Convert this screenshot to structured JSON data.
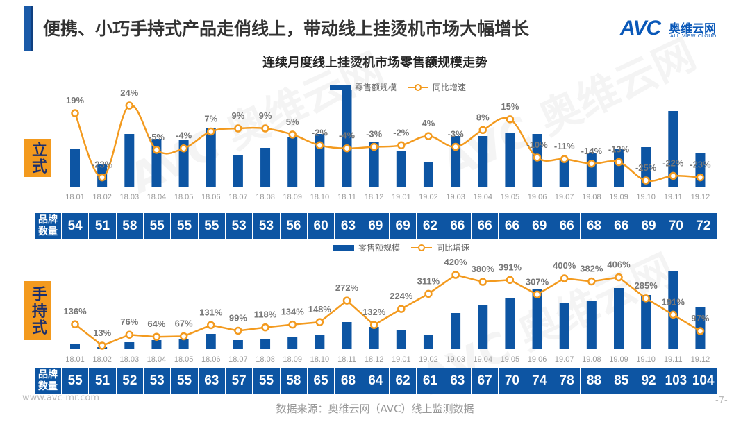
{
  "header": {
    "title": "便携、小巧手持式产品走俏线上，带动线上挂烫机市场大幅增长",
    "logo_text": "AVC",
    "logo_cn": "奥维云网",
    "logo_en": "ALL VIEW CLOUD"
  },
  "chart_title": "连续月度线上挂烫机市场零售额规模走势",
  "watermark": "AVC 奥维云网 ALL VIEW CLOUD",
  "brand_label": "品牌数量",
  "colors": {
    "bar": "#0d55a3",
    "line": "#f39a1e",
    "tag": "#f39a1e"
  },
  "chart_data": [
    {
      "type": "bar+line",
      "segment": "立式",
      "legend": [
        "零售额规模",
        "同比增速"
      ],
      "legend_placement": "top-center",
      "categories": [
        "18.01",
        "18.02",
        "18.03",
        "18.04",
        "18.05",
        "18.06",
        "18.07",
        "18.08",
        "18.09",
        "18.10",
        "18.11",
        "18.12",
        "19.01",
        "19.02",
        "19.03",
        "19.04",
        "19.05",
        "19.06",
        "19.07",
        "19.08",
        "19.09",
        "19.10",
        "19.11",
        "19.12"
      ],
      "series": [
        {
          "name": "零售额规模",
          "type": "bar",
          "unit": "relative",
          "values": [
            55,
            33,
            77,
            70,
            68,
            86,
            47,
            57,
            73,
            77,
            141,
            65,
            53,
            36,
            74,
            74,
            79,
            77,
            40,
            49,
            56,
            58,
            110,
            50
          ]
        },
        {
          "name": "同比增速",
          "type": "line",
          "unit": "%",
          "values": [
            19,
            -23,
            24,
            -5,
            -4,
            7,
            9,
            9,
            5,
            -2,
            -4,
            -3,
            -2,
            4,
            -3,
            8,
            15,
            -10,
            -11,
            -14,
            -13,
            -25,
            -22,
            -23
          ],
          "labels": [
            "19%",
            "-23%",
            "24%",
            "-5%",
            "-4%",
            "7%",
            "9%",
            "9%",
            "5%",
            "-2%",
            "-4%",
            "-3%",
            "-2%",
            "4%",
            "-3%",
            "8%",
            "15%",
            "-10%",
            "-11%",
            "-14%",
            "-13%",
            "-25%",
            "-22%",
            "-23%"
          ]
        }
      ],
      "brand_count": [
        54,
        51,
        58,
        55,
        55,
        55,
        53,
        53,
        56,
        60,
        63,
        69,
        69,
        62,
        66,
        66,
        66,
        69,
        66,
        68,
        66,
        69,
        70,
        72
      ]
    },
    {
      "type": "bar+line",
      "segment": "手持式",
      "legend": [
        "零售额规模",
        "同比增速"
      ],
      "legend_placement": "top-center",
      "categories": [
        "18.01",
        "18.02",
        "18.03",
        "18.04",
        "18.05",
        "18.06",
        "18.07",
        "18.08",
        "18.09",
        "18.10",
        "18.11",
        "18.12",
        "19.01",
        "19.02",
        "19.03",
        "19.04",
        "19.05",
        "19.06",
        "19.07",
        "19.08",
        "19.09",
        "19.10",
        "19.11",
        "19.12"
      ],
      "series": [
        {
          "name": "零售额规模",
          "type": "bar",
          "unit": "relative",
          "values": [
            8,
            3,
            10,
            13,
            15,
            22,
            13,
            14,
            18,
            21,
            39,
            32,
            27,
            21,
            52,
            63,
            73,
            87,
            66,
            69,
            88,
            78,
            113,
            61
          ]
        },
        {
          "name": "同比增速",
          "type": "line",
          "unit": "%",
          "values": [
            136,
            13,
            76,
            64,
            67,
            131,
            99,
            118,
            134,
            148,
            272,
            132,
            224,
            311,
            420,
            380,
            391,
            307,
            400,
            382,
            406,
            285,
            191,
            97
          ],
          "labels": [
            "136%",
            "13%",
            "76%",
            "64%",
            "67%",
            "131%",
            "99%",
            "118%",
            "134%",
            "148%",
            "272%",
            "132%",
            "224%",
            "311%",
            "420%",
            "380%",
            "391%",
            "307%",
            "400%",
            "382%",
            "406%",
            "285%",
            "191%",
            "97%"
          ]
        }
      ],
      "brand_count": [
        55,
        51,
        52,
        53,
        55,
        63,
        57,
        55,
        58,
        65,
        68,
        64,
        62,
        61,
        63,
        67,
        70,
        74,
        78,
        88,
        85,
        92,
        103,
        104
      ]
    }
  ],
  "footer": {
    "url": "www.avc-mr.com",
    "source": "数据来源：奥维云网（AVC）线上监测数据",
    "page": "-7-"
  }
}
